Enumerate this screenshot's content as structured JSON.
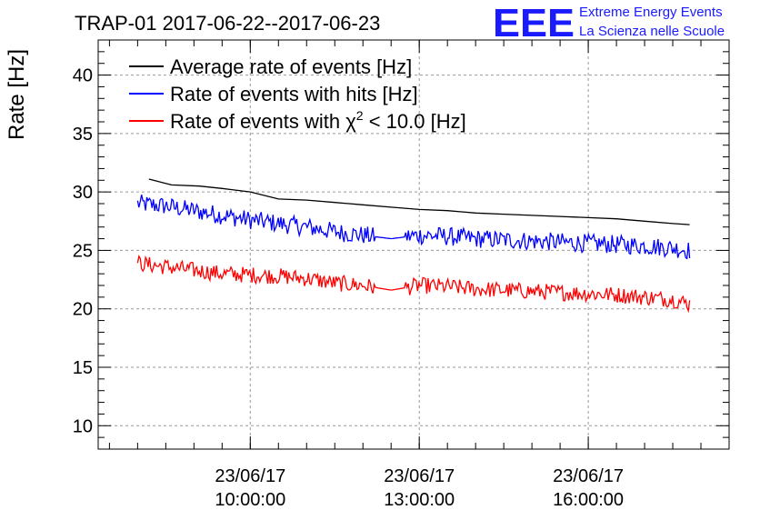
{
  "logo": {
    "letters": "EEE",
    "line1": "Extreme Energy Events",
    "line2": "La Scienza nelle Scuole",
    "color": "#1a1aff"
  },
  "chart_data": {
    "type": "line",
    "title": "TRAP-01 2017-06-22--2017-06-23",
    "ylabel": "Rate [Hz]",
    "xlabel": "",
    "ylim": [
      8,
      43
    ],
    "y_ticks": [
      10,
      15,
      20,
      25,
      30,
      35,
      40
    ],
    "xlim_hours": [
      7.3,
      18.5
    ],
    "x_ticks": [
      {
        "hour": 10,
        "date": "23/06/17",
        "time": "10:00:00"
      },
      {
        "hour": 13,
        "date": "23/06/17",
        "time": "13:00:00"
      },
      {
        "hour": 16,
        "date": "23/06/17",
        "time": "16:00:00"
      }
    ],
    "grid": true,
    "legend_position": "top-left",
    "legend": [
      {
        "text": "Average rate of events [Hz]",
        "color": "#000000"
      },
      {
        "text": "Rate of events with hits [Hz]",
        "color": "#0000ff"
      },
      {
        "text_prefix": "Rate of events with ",
        "chi": "χ",
        "sup": "2",
        "text_suffix": " < 10.0 [Hz]",
        "color": "#ff0000"
      }
    ],
    "series": [
      {
        "name": "Average rate of events [Hz]",
        "color": "#000000",
        "hours": [
          8.2,
          8.6,
          9.1,
          9.5,
          10.0,
          10.5,
          11.0,
          11.5,
          12.0,
          12.5,
          13.0,
          13.5,
          14.0,
          14.5,
          15.0,
          15.5,
          16.0,
          16.5,
          17.0,
          17.5,
          17.8
        ],
        "values": [
          31.1,
          30.6,
          30.5,
          30.3,
          30.0,
          29.4,
          29.3,
          29.1,
          28.9,
          28.7,
          28.5,
          28.4,
          28.2,
          28.1,
          28.0,
          27.9,
          27.8,
          27.7,
          27.5,
          27.3,
          27.2
        ]
      },
      {
        "name": "Rate of events with hits [Hz]",
        "color": "#0000ff",
        "hours": [
          8.0,
          8.5,
          9.0,
          9.5,
          10.0,
          10.5,
          11.0,
          11.5,
          12.0,
          12.5,
          13.0,
          13.5,
          14.0,
          14.5,
          15.0,
          15.5,
          16.0,
          16.5,
          17.0,
          17.5,
          17.8
        ],
        "values": [
          29.0,
          28.8,
          28.4,
          28.0,
          27.6,
          27.3,
          27.0,
          26.6,
          26.3,
          26.0,
          26.3,
          26.2,
          26.0,
          25.9,
          25.8,
          25.7,
          25.6,
          25.5,
          25.4,
          25.2,
          25.0
        ],
        "noise": 0.8
      },
      {
        "name": "Rate of events with χ2 < 10.0 [Hz]",
        "color": "#ff0000",
        "hours": [
          8.0,
          8.5,
          9.0,
          9.5,
          10.0,
          10.5,
          11.0,
          11.5,
          12.0,
          12.5,
          13.0,
          13.5,
          14.0,
          14.5,
          15.0,
          15.5,
          16.0,
          16.5,
          17.0,
          17.5,
          17.8
        ],
        "values": [
          23.9,
          23.6,
          23.3,
          23.0,
          22.9,
          22.8,
          22.6,
          22.2,
          22.0,
          21.6,
          22.0,
          21.9,
          21.7,
          21.6,
          21.5,
          21.4,
          21.3,
          21.2,
          21.0,
          20.8,
          20.4
        ],
        "noise": 0.7
      }
    ]
  }
}
